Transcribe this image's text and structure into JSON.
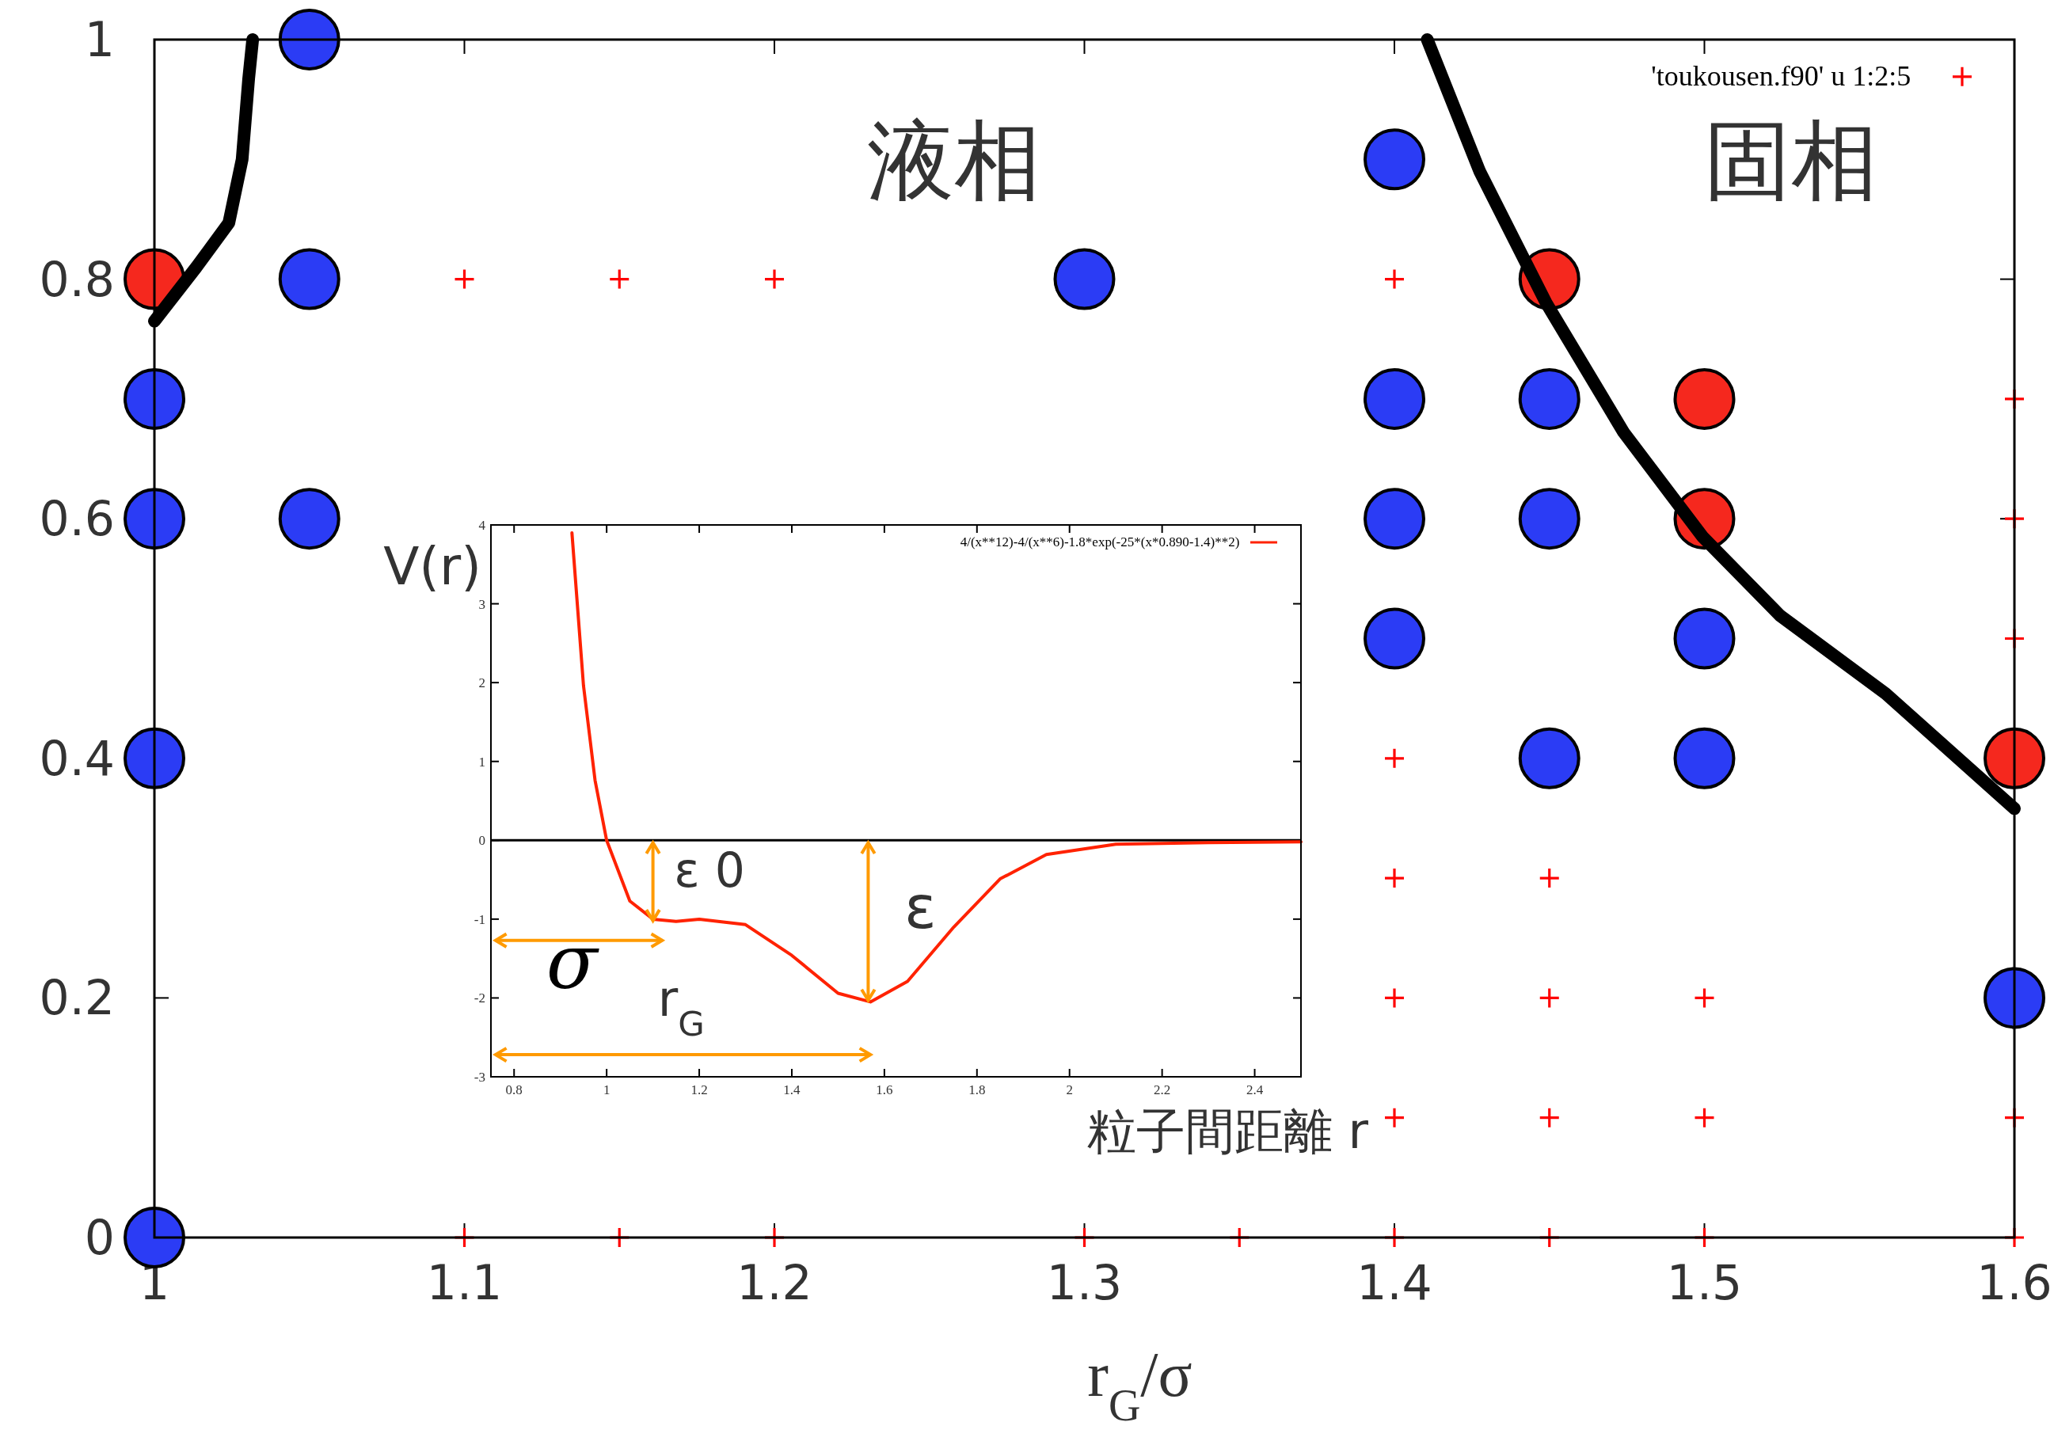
{
  "chart_data": [
    {
      "type": "scatter",
      "xlabel": "r$_{G}$/σ",
      "xlim": [
        1,
        1.6
      ],
      "xticks": [
        1,
        1.1,
        1.2,
        1.3,
        1.4,
        1.5,
        1.6
      ],
      "ylim": [
        0,
        1
      ],
      "yticks": [
        0,
        0.2,
        0.4,
        0.6,
        0.8,
        1
      ],
      "legend": "top right",
      "annotations": [
        "液相",
        "固相"
      ],
      "series": [
        {
          "marker": "circle",
          "color": "#2b3cf5",
          "x": [
            1.05,
            1.4,
            1.05,
            1.3,
            1.0,
            1.4,
            1.45,
            1.0,
            1.05,
            1.4,
            1.45,
            1.4,
            1.5,
            1.0,
            1.45,
            1.5,
            1.6,
            1.0
          ],
          "values": [
            1.0,
            0.9,
            0.8,
            0.8,
            0.7,
            0.7,
            0.7,
            0.6,
            0.6,
            0.6,
            0.6,
            0.5,
            0.5,
            0.4,
            0.4,
            0.4,
            0.2,
            0.0
          ]
        },
        {
          "marker": "circle",
          "color": "#f5281e",
          "x": [
            1.0,
            1.45,
            1.5,
            1.5,
            1.6
          ],
          "values": [
            0.8,
            0.8,
            0.7,
            0.6,
            0.4
          ]
        },
        {
          "marker": "cross",
          "name": "'toukousen.f90' u 1:2:5",
          "color": "#ff0000",
          "x": [
            1.1,
            1.15,
            1.2,
            1.4,
            1.4,
            1.4,
            1.45,
            1.4,
            1.45,
            1.5,
            1.4,
            1.45,
            1.5,
            1.1,
            1.15,
            1.2,
            1.3,
            1.35,
            1.4,
            1.45,
            1.5,
            1.6,
            1.6,
            1.6,
            1.6,
            1.6
          ],
          "values": [
            0.8,
            0.8,
            0.8,
            0.8,
            0.4,
            0.3,
            0.3,
            0.2,
            0.2,
            0.2,
            0.1,
            0.1,
            0.1,
            0,
            0,
            0,
            0,
            0,
            0,
            0,
            0,
            0,
            0.7,
            0.6,
            0.5,
            0.1
          ]
        },
        {
          "type": "line",
          "marker": "none",
          "color": "#000000",
          "x": [
            1.0,
            1.0135,
            1.024,
            1.0283,
            1.0304,
            1.0317
          ],
          "values": [
            0.765,
            0.81,
            0.847,
            0.9,
            0.967,
            1.0
          ]
        },
        {
          "type": "line",
          "marker": "none",
          "color": "#000000",
          "x": [
            1.4106,
            1.4275,
            1.449,
            1.474,
            1.4994,
            1.5245,
            1.5585,
            1.6
          ],
          "values": [
            1.0,
            0.89,
            0.78,
            0.672,
            0.585,
            0.519,
            0.454,
            0.358
          ]
        }
      ]
    },
    {
      "type": "line",
      "xlabel": "粒子間距離 r",
      "ylabel": "V(r)",
      "xlim": [
        0.75,
        2.5
      ],
      "xticks": [
        0.8,
        1,
        1.2,
        1.4,
        1.6,
        1.8,
        2,
        2.2,
        2.4
      ],
      "ylim": [
        -3,
        4
      ],
      "yticks": [
        -3,
        -2,
        -1,
        0,
        1,
        2,
        3,
        4
      ],
      "legend": "top right",
      "ref_lines": [
        {
          "axis": "y",
          "value": 0,
          "color": "#000000"
        }
      ],
      "annotations": [
        "ε 0",
        "σ",
        "ε",
        "r$_{G}$"
      ],
      "series": [
        {
          "name": "4/(x**12)-4/(x**6)-1.8*exp(-25*(x*0.890-1.4)**2)",
          "color": "#ff2200",
          "x": [
            0.925,
            0.95,
            0.975,
            1.0,
            1.05,
            1.1,
            1.15,
            1.2,
            1.3,
            1.4,
            1.5,
            1.57,
            1.65,
            1.75,
            1.85,
            1.95,
            2.1,
            2.3,
            2.5
          ],
          "values": [
            3.9,
            1.96,
            0.76,
            0,
            -0.77,
            -1.0,
            -1.03,
            -1.0,
            -1.07,
            -1.46,
            -1.94,
            -2.05,
            -1.79,
            -1.1,
            -0.49,
            -0.18,
            -0.05,
            -0.03,
            -0.02
          ]
        }
      ]
    }
  ]
}
